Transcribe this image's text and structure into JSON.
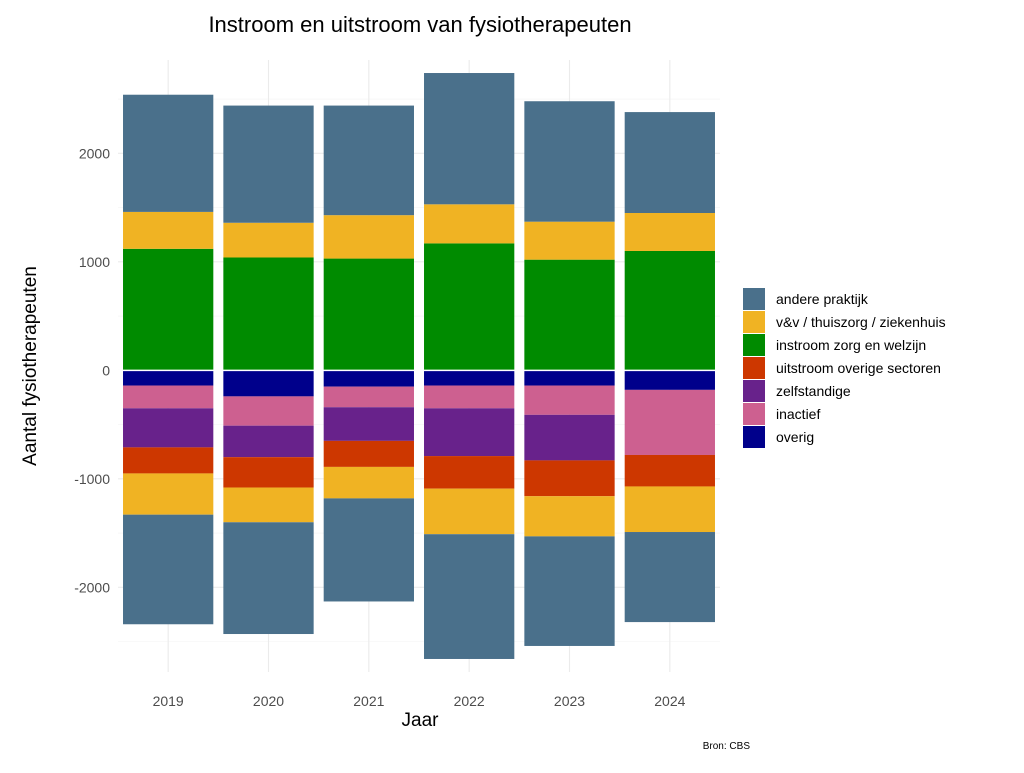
{
  "chart_data": {
    "type": "bar",
    "stacked": true,
    "diverging": true,
    "title": "Instroom en uitstroom van fysiotherapeuten",
    "xlabel": "Jaar",
    "ylabel": "Aantal fysiotherapeuten",
    "caption": "Bron: CBS",
    "categories": [
      "2019",
      "2020",
      "2021",
      "2022",
      "2023",
      "2024"
    ],
    "ylim": [
      -2780,
      2860
    ],
    "yticks": [
      -2000,
      -1000,
      0,
      1000,
      2000
    ],
    "grid": true,
    "legend_position": "right",
    "series": [
      {
        "name": "andere praktijk",
        "color": "#4a708b",
        "in": [
          1080,
          1080,
          1010,
          1210,
          1110,
          930
        ],
        "out": [
          -1010,
          -1030,
          -950,
          -1150,
          -1010,
          -830
        ]
      },
      {
        "name": "v&v / thuiszorg / ziekenhuis",
        "color": "#f0b323",
        "in": [
          340,
          320,
          400,
          360,
          350,
          350
        ],
        "out": [
          -380,
          -320,
          -290,
          -420,
          -370,
          -420
        ]
      },
      {
        "name": "instroom zorg en welzijn",
        "color": "#008b00",
        "in": [
          1120,
          1040,
          1030,
          1170,
          1020,
          1100
        ],
        "out": null
      },
      {
        "name": "uitstroom overige sectoren",
        "color": "#cd3700",
        "in": null,
        "out": [
          -240,
          -280,
          -240,
          -300,
          -330,
          -290
        ]
      },
      {
        "name": "zelfstandige",
        "color": "#68228b",
        "in": null,
        "out": [
          -360,
          -290,
          -310,
          -440,
          -420,
          0
        ]
      },
      {
        "name": "inactief",
        "color": "#cd6090",
        "in": null,
        "out": [
          -210,
          -270,
          -190,
          -210,
          -270,
          -600
        ]
      },
      {
        "name": "overig",
        "color": "#00008b",
        "in": null,
        "out": [
          -140,
          -240,
          -150,
          -140,
          -140,
          -180
        ]
      }
    ],
    "stack_order_positive": [
      "instroom zorg en welzijn",
      "v&v / thuiszorg / ziekenhuis",
      "andere praktijk"
    ],
    "stack_order_negative": [
      "overig",
      "inactief",
      "zelfstandige",
      "uitstroom overige sectoren",
      "v&v / thuiszorg / ziekenhuis",
      "andere praktijk"
    ]
  }
}
